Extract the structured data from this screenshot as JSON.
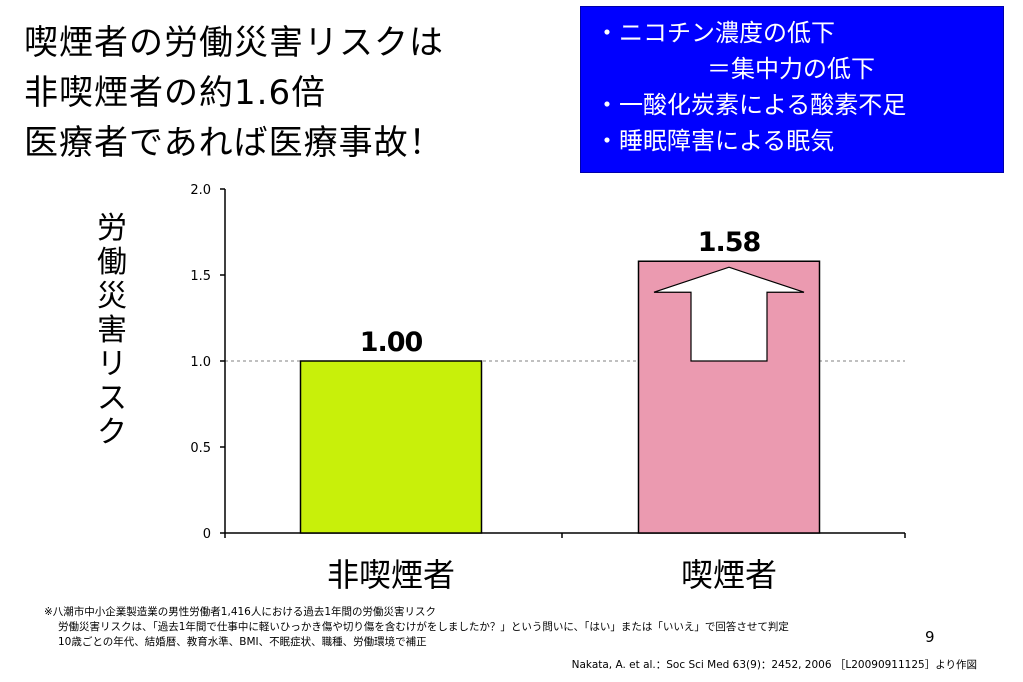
{
  "title": {
    "line1": "喫煙者の労働災害リスクは",
    "line2": "非喫煙者の約1.6倍",
    "line3": "医療者であれば医療事故！"
  },
  "callout": {
    "line1": "・ニコチン濃度の低下",
    "line2": "＝集中力の低下",
    "line3": "・一酸化炭素による酸素不足",
    "line4": "・睡眠障害による眠気"
  },
  "colors": {
    "callout_bg": "#0000ff",
    "bar_nonsmoker": "#c8f00a",
    "bar_smoker": "#eb9ab0"
  },
  "chart_data": {
    "type": "bar",
    "categories": [
      "非喫煙者",
      "喫煙者"
    ],
    "values": [
      1.0,
      1.58
    ],
    "data_labels": [
      "1.00",
      "1.58"
    ],
    "ylabel": "労働災害リスク",
    "ylim": [
      0,
      2.0
    ],
    "yticks": [
      "0",
      "0.5",
      "1.0",
      "1.5",
      "2.0"
    ],
    "reference_line": 1.0,
    "annotation": "up-arrow"
  },
  "ylabel_chars": [
    "労",
    "働",
    "災",
    "害",
    "リ",
    "ス",
    "ク"
  ],
  "footnote": {
    "line1": "※八潮市中小企業製造業の男性労働者1,416人における過去1年間の労働災害リスク",
    "line2": "労働災害リスクは、「過去1年間で仕事中に軽いひっかき傷や切り傷を含むけがをしましたか？」という問いに、「はい」または「いいえ」で回答させて判定",
    "line3": "10歳ごとの年代、結婚暦、教育水準、BMI、不眠症状、職種、労働環境で補正"
  },
  "page_number": "9",
  "citation": "Nakata, A. et al.：Soc Sci Med 63(9)：2452, 2006 ［L20090911125］より作図"
}
